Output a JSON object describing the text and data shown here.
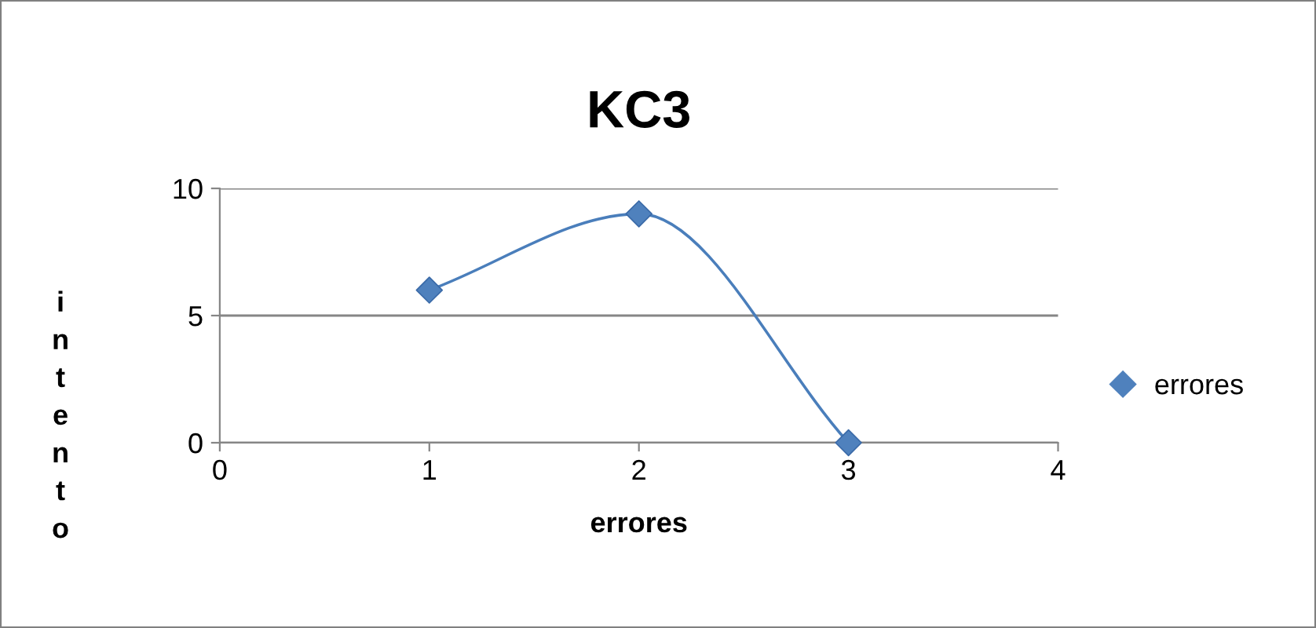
{
  "chart_data": {
    "type": "line",
    "title": "KC3",
    "xlabel": "errores",
    "ylabel": "intento",
    "series": [
      {
        "name": "errores",
        "color": "#4a7ebb",
        "x": [
          1,
          2,
          3
        ],
        "values": [
          6,
          9,
          0
        ]
      }
    ],
    "xlim": [
      0,
      4
    ],
    "xticks": [
      0,
      1,
      2,
      3,
      4
    ],
    "ylim": [
      0,
      10
    ],
    "yticks": [
      0,
      5,
      10
    ],
    "grid": "y",
    "legend": "right",
    "marker": "diamond",
    "line_style": "solid"
  }
}
